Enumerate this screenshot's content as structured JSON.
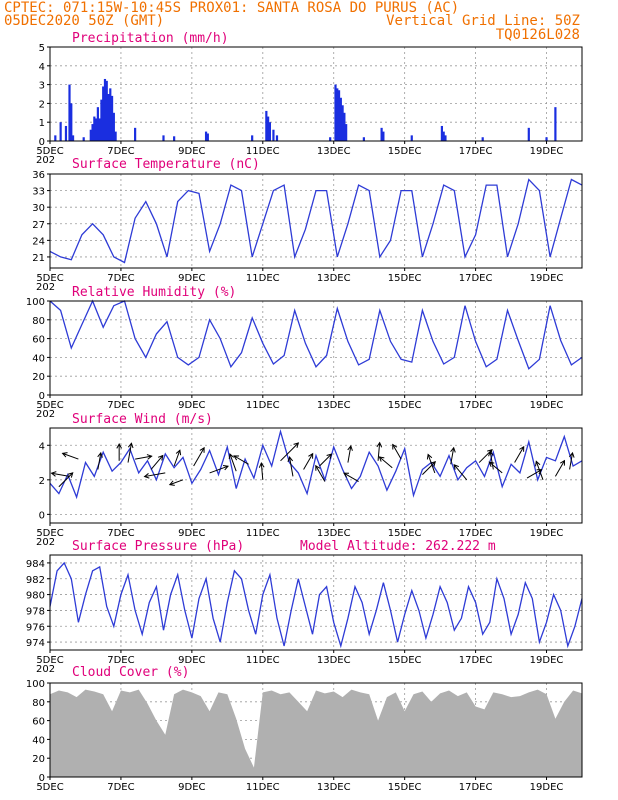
{
  "header": {
    "line1_left": "CPTEC:   071:15W-10:45S   PROX01: SANTA ROSA DO PURUS (AC)",
    "line2_left": "05DEC2020 50Z (GMT)",
    "line2_right": "Vertical Grid Line: 50Z",
    "line3_right": "TQ0126L028"
  },
  "x_axis": {
    "tick_labels": [
      "5DEC",
      "7DEC",
      "9DEC",
      "11DEC",
      "13DEC",
      "15DEC",
      "17DEC",
      "19DEC"
    ],
    "tick_days": [
      0,
      2,
      4,
      6,
      8,
      10,
      12,
      14
    ],
    "range_days": [
      0,
      15
    ],
    "year_stub": "202"
  },
  "colors": {
    "line": "#2e3bd6",
    "bar": "#1a2ee0",
    "cloud": "#b0b0b0",
    "header": "#f07000",
    "title": "#e0007a"
  },
  "chart_data": [
    {
      "type": "bar",
      "title": "Precipitation (mm/h)",
      "ylim": [
        0,
        5
      ],
      "yticks": [
        0,
        1,
        2,
        3,
        4,
        5
      ],
      "values": [
        [
          0.15,
          0.3
        ],
        [
          0.3,
          1.0
        ],
        [
          0.45,
          0.8
        ],
        [
          0.55,
          3.0
        ],
        [
          0.6,
          2.0
        ],
        [
          0.65,
          0.3
        ],
        [
          0.95,
          0.2
        ],
        [
          1.15,
          0.6
        ],
        [
          1.2,
          0.9
        ],
        [
          1.25,
          1.3
        ],
        [
          1.3,
          1.2
        ],
        [
          1.35,
          1.8
        ],
        [
          1.4,
          1.2
        ],
        [
          1.45,
          2.2
        ],
        [
          1.5,
          2.9
        ],
        [
          1.55,
          3.3
        ],
        [
          1.6,
          3.2
        ],
        [
          1.65,
          2.5
        ],
        [
          1.7,
          2.8
        ],
        [
          1.75,
          2.4
        ],
        [
          1.8,
          1.5
        ],
        [
          1.85,
          0.5
        ],
        [
          2.4,
          0.7
        ],
        [
          3.2,
          0.3
        ],
        [
          3.5,
          0.25
        ],
        [
          4.4,
          0.5
        ],
        [
          4.45,
          0.4
        ],
        [
          5.7,
          0.3
        ],
        [
          6.1,
          1.6
        ],
        [
          6.15,
          1.3
        ],
        [
          6.2,
          1.0
        ],
        [
          6.3,
          0.6
        ],
        [
          6.4,
          0.3
        ],
        [
          7.9,
          0.2
        ],
        [
          8.05,
          3.0
        ],
        [
          8.1,
          2.8
        ],
        [
          8.15,
          2.7
        ],
        [
          8.2,
          2.3
        ],
        [
          8.25,
          1.9
        ],
        [
          8.3,
          1.5
        ],
        [
          8.35,
          0.9
        ],
        [
          8.85,
          0.2
        ],
        [
          9.35,
          0.7
        ],
        [
          9.4,
          0.5
        ],
        [
          10.2,
          0.3
        ],
        [
          11.05,
          0.8
        ],
        [
          11.1,
          0.5
        ],
        [
          11.15,
          0.3
        ],
        [
          12.2,
          0.2
        ],
        [
          13.5,
          0.7
        ],
        [
          14.0,
          0.2
        ],
        [
          14.25,
          1.8
        ]
      ]
    },
    {
      "type": "line",
      "title": "Surface Temperature (nC)",
      "ylim": [
        19,
        36
      ],
      "yticks": [
        21,
        24,
        27,
        30,
        33,
        36
      ],
      "ytick_labels": [
        "21",
        "24",
        "27",
        "30",
        "33",
        "36"
      ],
      "x": [
        0,
        0.3,
        0.6,
        0.9,
        1.2,
        1.5,
        1.8,
        2.1,
        2.4,
        2.7,
        3.0,
        3.3,
        3.6,
        3.9,
        4.2,
        4.5,
        4.8,
        5.1,
        5.4,
        5.7,
        6.0,
        6.3,
        6.6,
        6.9,
        7.2,
        7.5,
        7.8,
        8.1,
        8.4,
        8.7,
        9.0,
        9.3,
        9.6,
        9.9,
        10.2,
        10.5,
        10.8,
        11.1,
        11.4,
        11.7,
        12.0,
        12.3,
        12.6,
        12.9,
        13.2,
        13.5,
        13.8,
        14.1,
        14.4,
        14.7,
        15.0
      ],
      "values": [
        22,
        21,
        20.5,
        25,
        27,
        25,
        21,
        20,
        28,
        31,
        27,
        21,
        31,
        33,
        32.5,
        22,
        27,
        34,
        33,
        21,
        27,
        33,
        34,
        21,
        26,
        33,
        33,
        21,
        27,
        34,
        33,
        21,
        24,
        33,
        33,
        21,
        27,
        34,
        33,
        21,
        25,
        34,
        34,
        21,
        27,
        35,
        33,
        21,
        28,
        35,
        34
      ]
    },
    {
      "type": "line",
      "title": "Relative Humidity (%)",
      "ylim": [
        0,
        100
      ],
      "yticks": [
        0,
        20,
        40,
        60,
        80,
        100
      ],
      "ytick_labels": [
        "0",
        "20",
        "40",
        "60",
        "80",
        "100"
      ],
      "x": [
        0,
        0.3,
        0.6,
        0.9,
        1.2,
        1.5,
        1.8,
        2.1,
        2.4,
        2.7,
        3.0,
        3.3,
        3.6,
        3.9,
        4.2,
        4.5,
        4.8,
        5.1,
        5.4,
        5.7,
        6.0,
        6.3,
        6.6,
        6.9,
        7.2,
        7.5,
        7.8,
        8.1,
        8.4,
        8.7,
        9.0,
        9.3,
        9.6,
        9.9,
        10.2,
        10.5,
        10.8,
        11.1,
        11.4,
        11.7,
        12.0,
        12.3,
        12.6,
        12.9,
        13.2,
        13.5,
        13.8,
        14.1,
        14.4,
        14.7,
        15.0
      ],
      "values": [
        100,
        90,
        50,
        75,
        100,
        72,
        95,
        100,
        60,
        40,
        65,
        78,
        40,
        32,
        40,
        80,
        60,
        30,
        45,
        82,
        55,
        33,
        42,
        90,
        55,
        30,
        42,
        92,
        57,
        32,
        38,
        90,
        57,
        38,
        35,
        90,
        57,
        33,
        40,
        95,
        57,
        30,
        38,
        90,
        58,
        28,
        38,
        95,
        58,
        32,
        40
      ]
    },
    {
      "type": "line",
      "title": "Surface Wind (m/s)",
      "ylim": [
        -0.5,
        5
      ],
      "yticks": [
        0,
        2,
        4
      ],
      "ytick_labels": [
        "0",
        "2",
        "4"
      ],
      "x": [
        0,
        0.25,
        0.5,
        0.75,
        1.0,
        1.25,
        1.5,
        1.75,
        2.0,
        2.25,
        2.5,
        2.75,
        3.0,
        3.25,
        3.5,
        3.75,
        4.0,
        4.25,
        4.5,
        4.75,
        5.0,
        5.25,
        5.5,
        5.75,
        6.0,
        6.25,
        6.5,
        6.75,
        7.0,
        7.25,
        7.5,
        7.75,
        8.0,
        8.25,
        8.5,
        8.75,
        9.0,
        9.25,
        9.5,
        9.75,
        10.0,
        10.25,
        10.5,
        10.75,
        11.0,
        11.25,
        11.5,
        11.75,
        12.0,
        12.25,
        12.5,
        12.75,
        13.0,
        13.25,
        13.5,
        13.75,
        14.0,
        14.25,
        14.5,
        14.75,
        15.0
      ],
      "values": [
        1.8,
        1.2,
        2.3,
        1.0,
        3.0,
        2.2,
        3.6,
        2.5,
        3.0,
        3.8,
        2.4,
        3.1,
        2.0,
        3.5,
        2.7,
        3.3,
        1.8,
        2.6,
        3.7,
        2.3,
        3.9,
        1.5,
        3.2,
        2.1,
        4.0,
        2.8,
        4.8,
        3.0,
        2.4,
        1.2,
        3.4,
        2.0,
        3.9,
        2.6,
        1.5,
        2.2,
        3.6,
        2.8,
        1.4,
        2.5,
        3.8,
        1.1,
        2.6,
        3.0,
        2.2,
        3.4,
        2.0,
        2.7,
        3.1,
        2.2,
        3.6,
        1.6,
        2.9,
        2.4,
        4.2,
        2.0,
        3.3,
        3.1,
        4.5,
        2.8,
        3.1
      ],
      "arrows": [
        [
          0.25,
          1.6,
          45,
          2.8
        ],
        [
          0.55,
          2.2,
          170,
          2.6
        ],
        [
          0.8,
          3.2,
          160,
          2.4
        ],
        [
          1.35,
          2.6,
          80,
          2.4
        ],
        [
          1.95,
          3.1,
          90,
          2.4
        ],
        [
          2.2,
          3.0,
          80,
          2.8
        ],
        [
          2.4,
          3.2,
          10,
          2.4
        ],
        [
          2.85,
          2.6,
          50,
          2.6
        ],
        [
          3.25,
          2.4,
          190,
          3.0
        ],
        [
          3.5,
          2.8,
          70,
          2.4
        ],
        [
          3.75,
          2.0,
          200,
          2.0
        ],
        [
          4.05,
          2.8,
          60,
          3.0
        ],
        [
          4.5,
          2.4,
          20,
          2.8
        ],
        [
          5.25,
          2.5,
          110,
          2.6
        ],
        [
          5.6,
          2.9,
          150,
          2.4
        ],
        [
          6.0,
          2.0,
          95,
          2.4
        ],
        [
          6.5,
          3.1,
          45,
          3.6
        ],
        [
          6.85,
          2.2,
          100,
          2.8
        ],
        [
          7.15,
          2.6,
          60,
          2.6
        ],
        [
          7.6,
          2.8,
          45,
          2.4
        ],
        [
          7.75,
          1.9,
          120,
          2.6
        ],
        [
          8.4,
          3.0,
          80,
          2.4
        ],
        [
          8.7,
          1.9,
          150,
          2.4
        ],
        [
          9.25,
          3.1,
          85,
          2.6
        ],
        [
          9.65,
          2.7,
          140,
          2.4
        ],
        [
          9.9,
          3.2,
          120,
          2.4
        ],
        [
          10.5,
          2.3,
          45,
          2.6
        ],
        [
          10.85,
          2.4,
          110,
          2.8
        ],
        [
          11.3,
          2.9,
          80,
          2.4
        ],
        [
          11.75,
          2.0,
          130,
          2.8
        ],
        [
          12.1,
          3.0,
          45,
          2.6
        ],
        [
          12.5,
          2.6,
          100,
          2.6
        ],
        [
          12.75,
          2.4,
          140,
          2.4
        ],
        [
          13.1,
          3.0,
          60,
          2.6
        ],
        [
          13.45,
          2.1,
          30,
          2.4
        ],
        [
          13.9,
          2.0,
          110,
          2.8
        ],
        [
          14.25,
          2.2,
          60,
          2.6
        ],
        [
          14.65,
          2.6,
          80,
          2.4
        ]
      ]
    },
    {
      "type": "line",
      "title": "Surface Pressure (hPa)",
      "subtitle": "Model Altitude: 262.222  m",
      "ylim": [
        973,
        985
      ],
      "yticks": [
        974,
        976,
        978,
        980,
        982,
        984
      ],
      "ytick_labels": [
        "974",
        "976",
        "978",
        "980",
        "982",
        "984"
      ],
      "x": [
        0,
        0.2,
        0.4,
        0.6,
        0.8,
        1.0,
        1.2,
        1.4,
        1.6,
        1.8,
        2.0,
        2.2,
        2.4,
        2.6,
        2.8,
        3.0,
        3.2,
        3.4,
        3.6,
        3.8,
        4.0,
        4.2,
        4.4,
        4.6,
        4.8,
        5.0,
        5.2,
        5.4,
        5.6,
        5.8,
        6.0,
        6.2,
        6.4,
        6.6,
        6.8,
        7.0,
        7.2,
        7.4,
        7.6,
        7.8,
        8.0,
        8.2,
        8.4,
        8.6,
        8.8,
        9.0,
        9.2,
        9.4,
        9.6,
        9.8,
        10.0,
        10.2,
        10.4,
        10.6,
        10.8,
        11.0,
        11.2,
        11.4,
        11.6,
        11.8,
        12.0,
        12.2,
        12.4,
        12.6,
        12.8,
        13.0,
        13.2,
        13.4,
        13.6,
        13.8,
        14.0,
        14.2,
        14.4,
        14.6,
        14.8,
        15.0
      ],
      "values": [
        978.5,
        983,
        984,
        982,
        976.5,
        980,
        983,
        983.5,
        978.5,
        976,
        980,
        982.5,
        978,
        975,
        979,
        981,
        975.5,
        980,
        982.5,
        978,
        974.5,
        979.5,
        982,
        977,
        974,
        979,
        983,
        982,
        978,
        975,
        980,
        982.5,
        977,
        973.5,
        978,
        982,
        978.5,
        975,
        980,
        981,
        976.5,
        973.5,
        977,
        981,
        979,
        975,
        978,
        981.5,
        978,
        974,
        977.5,
        980.5,
        978,
        974.5,
        977.5,
        981,
        979,
        975.5,
        977,
        981,
        979,
        975,
        976.5,
        982,
        979.5,
        975,
        977.5,
        981.5,
        979.5,
        974,
        976.5,
        980,
        978,
        973.5,
        976,
        979.5
      ]
    },
    {
      "type": "area",
      "title": "Cloud Cover (%)",
      "ylim": [
        0,
        100
      ],
      "yticks": [
        0,
        20,
        40,
        60,
        80,
        100
      ],
      "ytick_labels": [
        "0",
        "20",
        "40",
        "60",
        "80",
        "100"
      ],
      "x": [
        0,
        0.25,
        0.5,
        0.75,
        1.0,
        1.25,
        1.5,
        1.75,
        2.0,
        2.25,
        2.5,
        2.75,
        3.0,
        3.25,
        3.5,
        3.75,
        4.0,
        4.25,
        4.5,
        4.75,
        5.0,
        5.25,
        5.5,
        5.75,
        6.0,
        6.25,
        6.5,
        6.75,
        7.0,
        7.25,
        7.5,
        7.75,
        8.0,
        8.25,
        8.5,
        8.75,
        9.0,
        9.25,
        9.5,
        9.75,
        10.0,
        10.25,
        10.5,
        10.75,
        11.0,
        11.25,
        11.5,
        11.75,
        12.0,
        12.25,
        12.5,
        12.75,
        13.0,
        13.25,
        13.5,
        13.75,
        14.0,
        14.25,
        14.5,
        14.75,
        15.0
      ],
      "values": [
        88,
        92,
        90,
        85,
        93,
        91,
        88,
        70,
        92,
        90,
        93,
        78,
        60,
        45,
        88,
        93,
        90,
        86,
        70,
        90,
        88,
        62,
        30,
        10,
        90,
        92,
        88,
        90,
        80,
        70,
        92,
        89,
        91,
        85,
        93,
        90,
        88,
        60,
        85,
        90,
        70,
        88,
        91,
        80,
        89,
        92,
        86,
        90,
        75,
        72,
        90,
        88,
        85,
        86,
        90,
        93,
        88,
        62,
        80,
        92,
        89
      ]
    }
  ]
}
